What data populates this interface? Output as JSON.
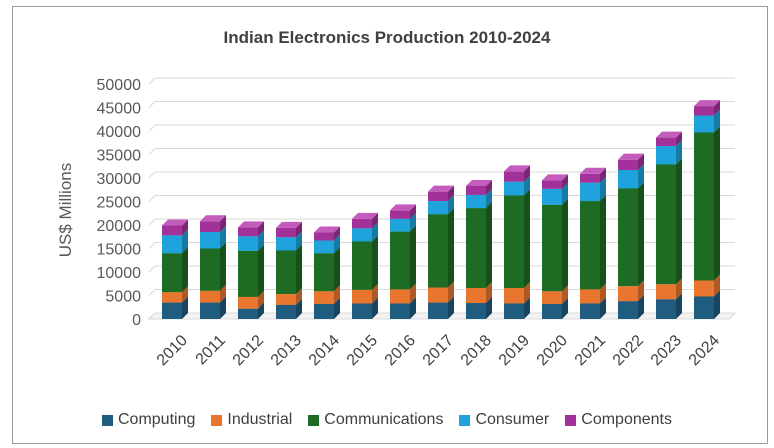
{
  "chart_data": {
    "type": "bar",
    "stacked": true,
    "title": "Indian Electronics Production 2010-2024",
    "xlabel": "",
    "ylabel": "US$ Millions",
    "ylim": [
      0,
      50000
    ],
    "yticks": [
      0,
      5000,
      10000,
      15000,
      20000,
      25000,
      30000,
      35000,
      40000,
      45000,
      50000
    ],
    "grid": true,
    "legend_position": "bottom",
    "categories": [
      "2010",
      "2011",
      "2012",
      "2013",
      "2014",
      "2015",
      "2016",
      "2017",
      "2018",
      "2019",
      "2020",
      "2021",
      "2022",
      "2023",
      "2024"
    ],
    "series": [
      {
        "name": "Computing",
        "color": "#1f5c80",
        "top_color": "#2d7aa6",
        "values": [
          3500,
          3500,
          2200,
          3000,
          3200,
          3300,
          3300,
          3500,
          3400,
          3300,
          3200,
          3300,
          3800,
          4200,
          4800
        ]
      },
      {
        "name": "Industrial",
        "color": "#e8762e",
        "top_color": "#f29a5d",
        "values": [
          2200,
          2500,
          2500,
          2300,
          2700,
          2900,
          3000,
          3200,
          3200,
          3300,
          2700,
          3000,
          3200,
          3200,
          3400
        ]
      },
      {
        "name": "Communications",
        "color": "#1e6b23",
        "top_color": "#2e8f35",
        "values": [
          8300,
          9000,
          9800,
          9300,
          8100,
          10300,
          12300,
          15600,
          17000,
          19700,
          18400,
          18800,
          20800,
          25500,
          31500
        ]
      },
      {
        "name": "Consumer",
        "color": "#1ea3dc",
        "top_color": "#55bde8",
        "values": [
          3800,
          3500,
          3100,
          2800,
          2700,
          2800,
          2700,
          2800,
          2800,
          2900,
          3400,
          3900,
          3900,
          3900,
          3600
        ]
      },
      {
        "name": "Components",
        "color": "#a2329a",
        "top_color": "#c45cbc",
        "values": [
          2100,
          2300,
          1900,
          2000,
          1700,
          2000,
          1800,
          2000,
          1900,
          2200,
          1800,
          1900,
          2200,
          1800,
          2000
        ]
      }
    ]
  }
}
